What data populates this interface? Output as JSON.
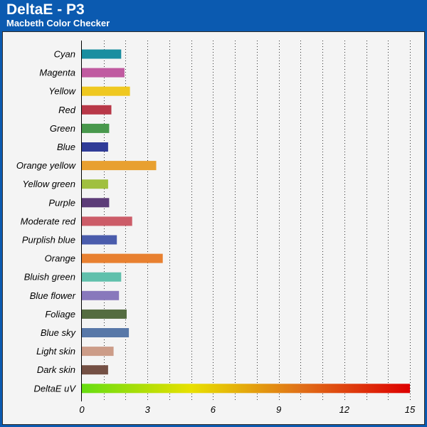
{
  "header": {
    "title": "DeltaE - P3",
    "subtitle": "Macbeth Color Checker"
  },
  "colors": {
    "background_frame": "#0b5ab0",
    "panel": "#f4f4f4"
  },
  "chart_data": {
    "type": "bar",
    "orientation": "horizontal",
    "title": "DeltaE - P3",
    "subtitle": "Macbeth Color Checker",
    "xlabel": "",
    "ylabel": "",
    "xlim": [
      0,
      15
    ],
    "xticks": [
      0,
      3,
      6,
      9,
      12,
      15
    ],
    "grid": "vertical dotted",
    "legend": "none",
    "categories": [
      "Cyan",
      "Magenta",
      "Yellow",
      "Red",
      "Green",
      "Blue",
      "Orange yellow",
      "Yellow green",
      "Purple",
      "Moderate red",
      "Purplish blue",
      "Orange",
      "Bluish green",
      "Blue flower",
      "Foliage",
      "Blue sky",
      "Light skin",
      "Dark skin",
      "DeltaE uV"
    ],
    "values": [
      1.8,
      1.95,
      2.2,
      1.35,
      1.25,
      1.2,
      3.4,
      1.2,
      1.25,
      2.3,
      1.6,
      3.7,
      1.8,
      1.7,
      2.05,
      2.15,
      1.45,
      1.2,
      15
    ],
    "bar_colors": [
      "#1a8ea0",
      "#c05aa0",
      "#efc820",
      "#b83848",
      "#48984c",
      "#303c98",
      "#e8a030",
      "#a0c040",
      "#5c3c78",
      "#cc5c68",
      "#4a5cac",
      "#e88030",
      "#60c0ac",
      "#8878bc",
      "#546c40",
      "#5878a8",
      "#cc9c88",
      "#745044",
      "gradient"
    ],
    "gradient_stops": [
      "#66dd11",
      "#e8e000",
      "#e07018",
      "#dd0000"
    ]
  }
}
